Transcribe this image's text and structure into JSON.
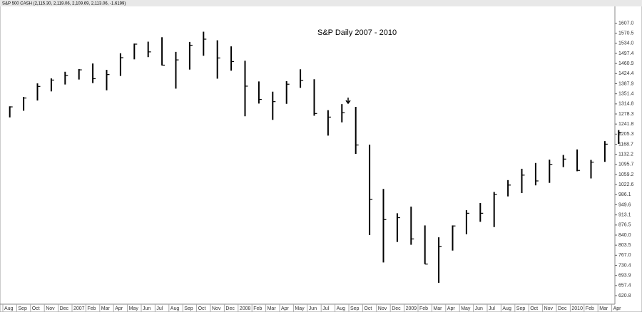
{
  "chart_data": {
    "type": "ohlc",
    "header": "S&P 500 CASH (2,115.30, 2,119.06, 2,109.69, 2,113.06, -1.6199)",
    "title": "S&P Daily  2007 - 2010",
    "categories": [
      "Aug",
      "Sep",
      "Oct",
      "Nov",
      "Dec",
      "2007",
      "Feb",
      "Mar",
      "Apr",
      "May",
      "Jun",
      "Jul",
      "Aug",
      "Sep",
      "Oct",
      "Nov",
      "Dec",
      "2008",
      "Feb",
      "Mar",
      "Apr",
      "May",
      "Jun",
      "Jul",
      "Aug",
      "Sep",
      "Oct",
      "Nov",
      "Dec",
      "2009",
      "Feb",
      "Mar",
      "Apr",
      "May",
      "Jun",
      "Jul",
      "Aug",
      "Sep",
      "Oct",
      "Nov",
      "Dec",
      "2010",
      "Feb",
      "Mar",
      "Apr"
    ],
    "high": [
      1306,
      1340,
      1389,
      1407,
      1431,
      1441,
      1461,
      1438,
      1498,
      1533,
      1540,
      1556,
      1503,
      1539,
      1576,
      1545,
      1523,
      1471,
      1396,
      1359,
      1397,
      1440,
      1404,
      1292,
      1314,
      1304,
      1167,
      1007,
      919,
      943,
      875,
      832,
      875,
      930,
      956,
      996,
      1039,
      1080,
      1101,
      1113,
      1130,
      1150,
      1112,
      1180,
      1220
    ],
    "low": [
      1266,
      1290,
      1327,
      1360,
      1385,
      1403,
      1390,
      1364,
      1416,
      1476,
      1484,
      1454,
      1370,
      1439,
      1489,
      1406,
      1435,
      1270,
      1316,
      1257,
      1315,
      1373,
      1272,
      1200,
      1248,
      1134,
      840,
      741,
      815,
      805,
      735,
      667,
      784,
      843,
      888,
      869,
      980,
      992,
      1020,
      1029,
      1086,
      1071,
      1045,
      1105,
      1170
    ],
    "close": [
      1304,
      1336,
      1378,
      1401,
      1418,
      1438,
      1406,
      1421,
      1482,
      1531,
      1503,
      1455,
      1474,
      1527,
      1549,
      1481,
      1468,
      1379,
      1331,
      1323,
      1386,
      1400,
      1280,
      1267,
      1283,
      1166,
      969,
      896,
      903,
      826,
      735,
      798,
      873,
      919,
      919,
      987,
      1021,
      1057,
      1036,
      1096,
      1115,
      1074,
      1104,
      1169,
      1210
    ],
    "color": "#000000",
    "ylim": [
      590,
      1665
    ],
    "yticks": [
      620.8,
      657.4,
      693.9,
      730.4,
      {
        "value": 767,
        "label": "767.0"
      },
      803.5,
      {
        "value": 840,
        "label": "840.0"
      },
      876.5,
      913.1,
      949.6,
      986.1,
      1022.6,
      1059.2,
      1095.7,
      1132.2,
      1168.7,
      1205.3,
      1241.8,
      1278.3,
      1314.8,
      1351.4,
      1387.9,
      1424.4,
      1460.9,
      1497.4,
      {
        "value": 1534,
        "label": "1534.0"
      },
      1570.5,
      {
        "value": 1607,
        "label": "1607.0"
      }
    ],
    "grid": false
  }
}
